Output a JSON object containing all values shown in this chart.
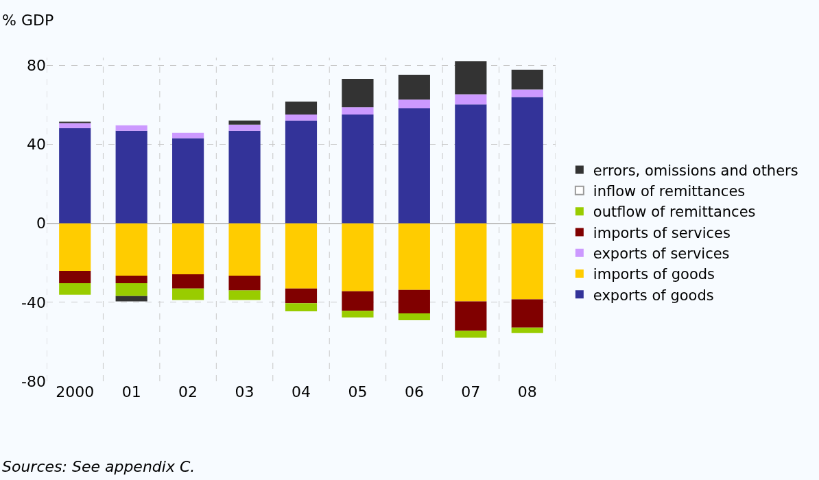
{
  "chart_data": {
    "type": "bar",
    "stacked": true,
    "ylabel": "% GDP",
    "categories": [
      "2000",
      "01",
      "02",
      "03",
      "04",
      "05",
      "06",
      "07",
      "08"
    ],
    "series": [
      {
        "name": "exports of goods",
        "color": "#333399",
        "values": [
          48.3,
          46.9,
          43.2,
          46.9,
          52.1,
          55.2,
          58.3,
          60.3,
          64.0
        ]
      },
      {
        "name": "imports of goods",
        "color": "#ffcc00",
        "values": [
          -24.1,
          -26.5,
          -25.8,
          -26.5,
          -33.0,
          -34.4,
          -33.7,
          -39.5,
          -38.5
        ]
      },
      {
        "name": "exports of services",
        "color": "#cc99ff",
        "values": [
          2.5,
          2.8,
          2.7,
          3.1,
          3.1,
          3.7,
          4.4,
          5.1,
          3.8
        ]
      },
      {
        "name": "imports of services",
        "color": "#800000",
        "values": [
          -6.2,
          -3.8,
          -7.2,
          -7.5,
          -7.5,
          -9.9,
          -11.9,
          -15.0,
          -14.3
        ]
      },
      {
        "name": "outflow of remittances",
        "color": "#99cc00",
        "values": [
          -5.8,
          -6.5,
          -5.8,
          -4.8,
          -4.1,
          -3.4,
          -3.5,
          -3.4,
          -2.8
        ]
      },
      {
        "name": "inflow of remittances",
        "color": "#ffffff",
        "values": [
          null,
          null,
          null,
          null,
          null,
          null,
          null,
          null,
          null
        ]
      },
      {
        "name": "errors, omissions and others",
        "color": "#333333",
        "values": [
          0.7,
          -2.7,
          null,
          2.1,
          6.5,
          14.3,
          12.6,
          16.8,
          10.0
        ]
      }
    ],
    "ylim": [
      -80,
      84
    ],
    "yticks": [
      -80,
      -40,
      0,
      40,
      80
    ],
    "grid": true,
    "legend": "right",
    "annotations": [
      "Sources: See appendix C."
    ]
  }
}
